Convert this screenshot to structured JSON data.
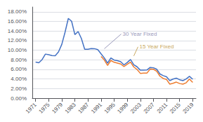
{
  "chart_data": {
    "type": "line",
    "series": [
      {
        "color": "#4472C4",
        "x": [
          1971,
          1972,
          1973,
          1974,
          1975,
          1976,
          1977,
          1978,
          1979,
          1980,
          1981,
          1982,
          1983,
          1984,
          1985,
          1986,
          1987,
          1988,
          1989,
          1990,
          1991,
          1992,
          1993,
          1994,
          1995,
          1996,
          1997,
          1998,
          1999,
          2000,
          2001,
          2002,
          2003,
          2004,
          2005,
          2006,
          2007,
          2008,
          2009,
          2010,
          2011,
          2012,
          2013,
          2014,
          2015,
          2016,
          2017,
          2018,
          2019
        ],
        "values": [
          7.54,
          7.38,
          8.04,
          9.19,
          9.05,
          8.87,
          8.85,
          9.64,
          11.2,
          13.74,
          16.63,
          16.04,
          13.24,
          13.88,
          12.43,
          10.19,
          10.21,
          10.34,
          10.32,
          10.13,
          9.25,
          8.39,
          7.31,
          8.38,
          7.93,
          7.81,
          7.6,
          6.94,
          7.44,
          8.05,
          6.97,
          6.54,
          5.83,
          5.84,
          5.87,
          6.41,
          6.34,
          6.03,
          5.04,
          4.69,
          4.45,
          3.66,
          3.98,
          4.17,
          3.85,
          3.65,
          3.99,
          4.54,
          3.94
        ]
      },
      {
        "color": "#ED7D31",
        "x": [
          1991,
          1992,
          1993,
          1994,
          1995,
          1996,
          1997,
          1998,
          1999,
          2000,
          2001,
          2002,
          2003,
          2004,
          2005,
          2006,
          2007,
          2008,
          2009,
          2010,
          2011,
          2012,
          2013,
          2014,
          2015,
          2016,
          2017,
          2018,
          2019
        ],
        "values": [
          8.69,
          7.96,
          6.83,
          7.86,
          7.48,
          7.32,
          7.13,
          6.59,
          7.06,
          7.52,
          6.5,
          5.98,
          5.17,
          5.21,
          5.21,
          6.07,
          6.03,
          5.62,
          4.57,
          4.1,
          3.9,
          2.93,
          3.11,
          3.35,
          3.05,
          2.93,
          3.2,
          3.99,
          3.28
        ]
      }
    ],
    "xlim": [
      1970,
      2020
    ],
    "xticks": [
      1971,
      1975,
      1979,
      1983,
      1987,
      1991,
      1995,
      1999,
      2003,
      2007,
      2011,
      2015,
      2019
    ],
    "ylim": [
      0,
      19.0
    ],
    "yticks": [
      {
        "value": 0,
        "label": "0.00%"
      },
      {
        "value": 2,
        "label": "2.00%"
      },
      {
        "value": 4,
        "label": "4.00%"
      },
      {
        "value": 6,
        "label": "6.00%"
      },
      {
        "value": 8,
        "label": "8.00%"
      },
      {
        "value": 10,
        "label": "10.00%"
      },
      {
        "value": 12,
        "label": "12.00%"
      },
      {
        "value": 14,
        "label": "14.00%"
      },
      {
        "value": 16,
        "label": "16.00%"
      },
      {
        "value": 18,
        "label": "18.00%"
      }
    ],
    "grid": "y",
    "annotations": [
      {
        "text": "30 Year Fixed",
        "color": "#9999bb",
        "x": 1992,
        "y": 10.3
      },
      {
        "text": "15 Year Fixed",
        "color": "#c8a860",
        "x": 2001,
        "y": 8.8
      }
    ]
  }
}
